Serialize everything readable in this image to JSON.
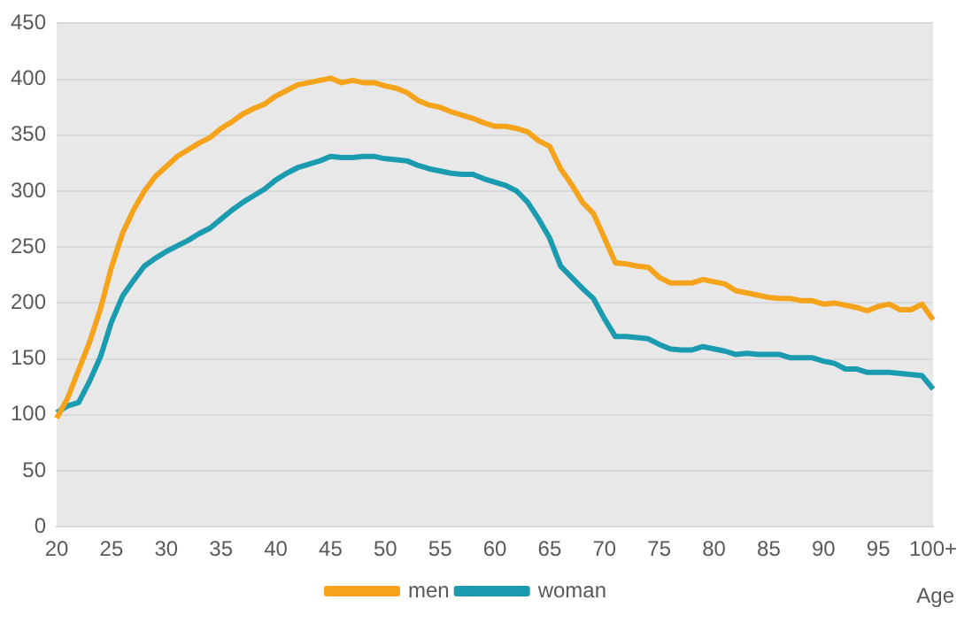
{
  "chart_data": {
    "type": "line",
    "xlabel": "Age",
    "categories": [
      "20",
      null,
      null,
      null,
      null,
      "25",
      null,
      null,
      null,
      null,
      "30",
      null,
      null,
      null,
      null,
      "35",
      null,
      null,
      null,
      null,
      "40",
      null,
      null,
      null,
      null,
      "45",
      null,
      null,
      null,
      null,
      "50",
      null,
      null,
      null,
      null,
      "55",
      null,
      null,
      null,
      null,
      "60",
      null,
      null,
      null,
      null,
      "65",
      null,
      null,
      null,
      null,
      "70",
      null,
      null,
      null,
      null,
      "75",
      null,
      null,
      null,
      null,
      "80",
      null,
      null,
      null,
      null,
      "85",
      null,
      null,
      null,
      null,
      "90",
      null,
      null,
      null,
      null,
      "95",
      null,
      null,
      null,
      null,
      "100+"
    ],
    "series": [
      {
        "name": "men",
        "color": "#f5a31b",
        "values": [
          97,
          115,
          140,
          165,
          195,
          232,
          262,
          283,
          300,
          313,
          322,
          331,
          337,
          343,
          348,
          356,
          362,
          369,
          374,
          378,
          385,
          390,
          395,
          397,
          399,
          401,
          397,
          399,
          397,
          397,
          394,
          392,
          388,
          381,
          377,
          375,
          371,
          368,
          365,
          361,
          358,
          358,
          356,
          353,
          345,
          340,
          320,
          306,
          290,
          280,
          258,
          236,
          235,
          233,
          232,
          223,
          218,
          218,
          218,
          221,
          219,
          217,
          211,
          209,
          207,
          205,
          204,
          204,
          202,
          202,
          199,
          200,
          198,
          196,
          193,
          197,
          199,
          194,
          194,
          199,
          185
        ]
      },
      {
        "name": "woman",
        "color": "#1a9bb0",
        "values": [
          102,
          108,
          111,
          130,
          152,
          183,
          206,
          220,
          233,
          240,
          246,
          251,
          256,
          262,
          267,
          275,
          283,
          290,
          296,
          302,
          310,
          316,
          321,
          324,
          327,
          331,
          330,
          330,
          331,
          331,
          329,
          328,
          327,
          323,
          320,
          318,
          316,
          315,
          315,
          311,
          308,
          305,
          300,
          290,
          275,
          258,
          233,
          223,
          213,
          204,
          186,
          170,
          170,
          169,
          168,
          163,
          159,
          158,
          158,
          161,
          159,
          157,
          154,
          155,
          154,
          154,
          154,
          151,
          151,
          151,
          148,
          146,
          141,
          141,
          138,
          138,
          138,
          137,
          136,
          135,
          123
        ]
      }
    ],
    "ylim": [
      0,
      450
    ],
    "yticks": [
      0,
      50,
      100,
      150,
      200,
      250,
      300,
      350,
      400,
      450
    ],
    "grid": "y",
    "legend": "bottom",
    "marker": "none",
    "line_style": "solid"
  }
}
